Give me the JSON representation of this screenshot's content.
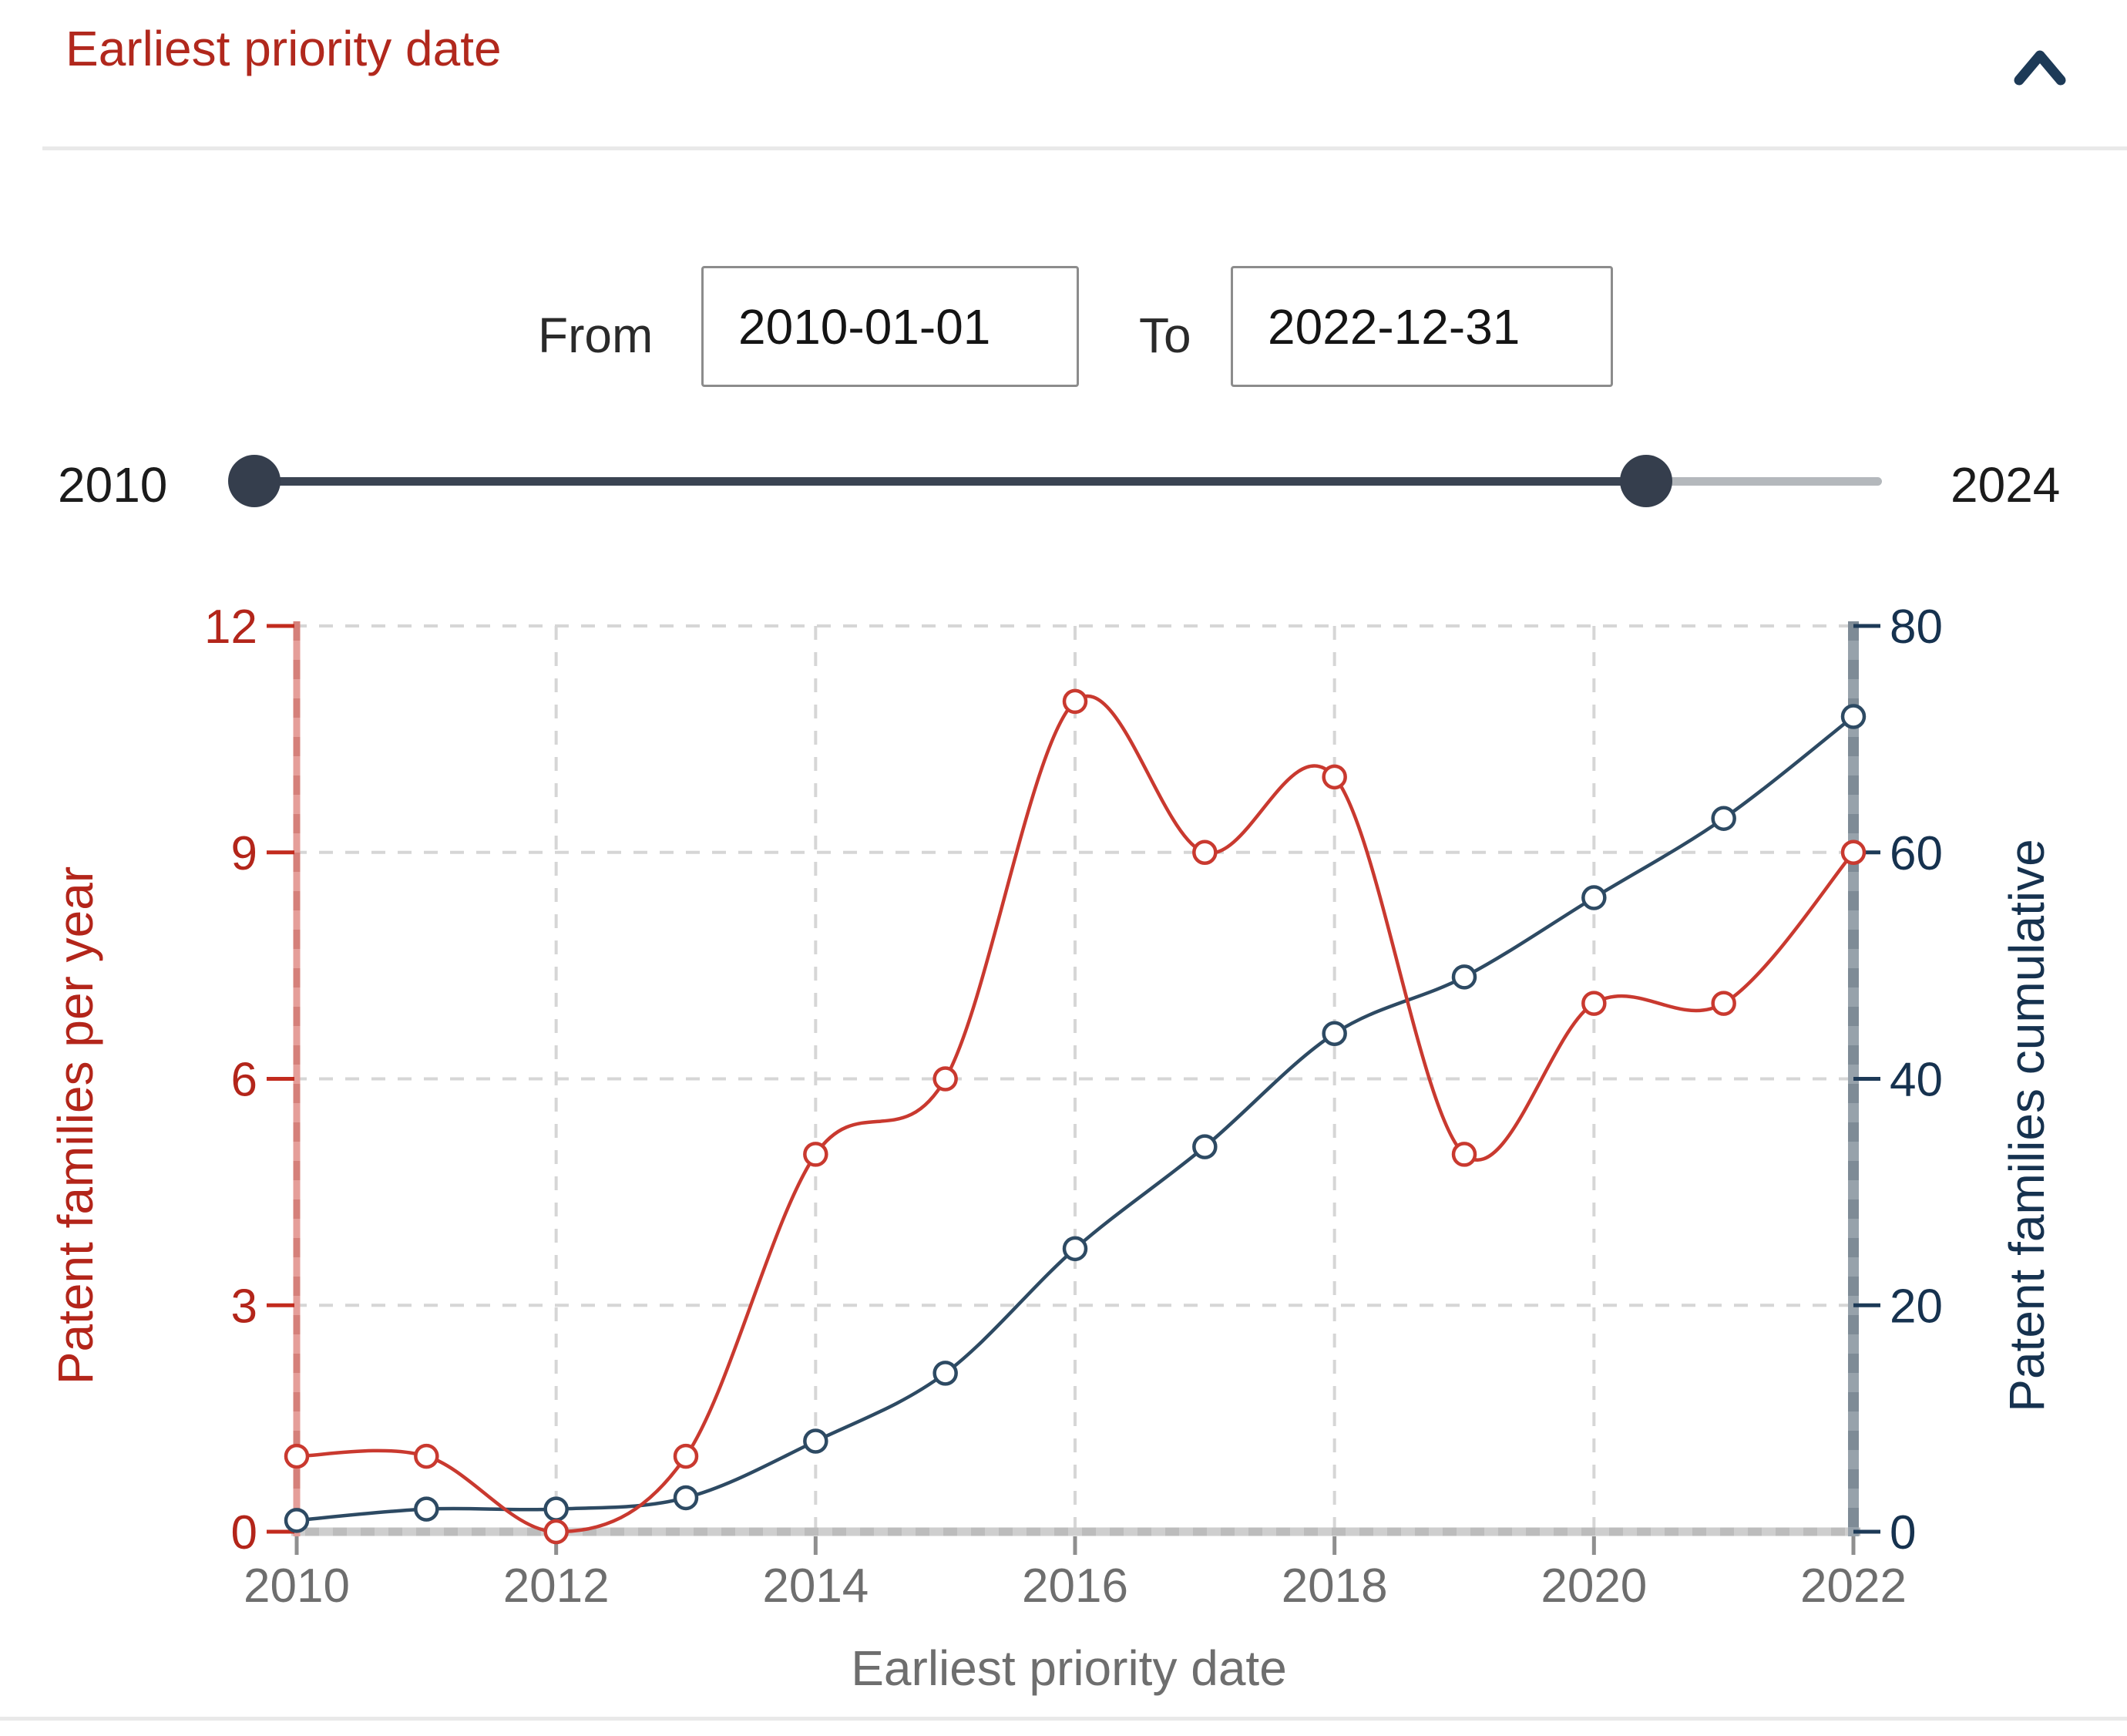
{
  "header": {
    "title": "Earliest priority date",
    "collapse_icon": "chevron-up"
  },
  "date_filter": {
    "from_label": "From",
    "from_value": "2010-01-01",
    "to_label": "To",
    "to_value": "2022-12-31"
  },
  "range_slider": {
    "min_label": "2010",
    "max_label": "2024",
    "min": 2010,
    "max": 2024,
    "selected_start": 2010,
    "selected_end": 2022
  },
  "chart_data": {
    "type": "line",
    "x": [
      2010,
      2011,
      2012,
      2013,
      2014,
      2015,
      2016,
      2017,
      2018,
      2019,
      2020,
      2021,
      2022
    ],
    "series": [
      {
        "name": "Patent families per year",
        "axis": "left",
        "color": "#c9392f",
        "marker": "open-circle",
        "values": [
          1,
          1,
          0,
          1,
          5,
          6,
          11,
          9,
          10,
          5,
          7,
          7,
          9
        ]
      },
      {
        "name": "Patent families cumulative",
        "axis": "right",
        "color": "#2d4a63",
        "marker": "open-circle",
        "values": [
          1,
          2,
          2,
          3,
          8,
          14,
          25,
          34,
          44,
          49,
          56,
          63,
          72
        ]
      }
    ],
    "left_axis": {
      "label": "Patent families per year",
      "color": "#b3251a",
      "ticks": [
        0,
        3,
        6,
        9,
        12
      ],
      "range": [
        0,
        12
      ]
    },
    "right_axis": {
      "label": "Patent families cumulative",
      "color": "#16324f",
      "ticks": [
        0,
        20,
        40,
        60,
        80
      ],
      "range": [
        0,
        80
      ]
    },
    "x_axis": {
      "label": "Earliest priority date",
      "color": "#6e6e6e",
      "ticks": [
        2010,
        2012,
        2014,
        2016,
        2018,
        2020,
        2022
      ],
      "range": [
        2010,
        2022
      ]
    },
    "grid": true,
    "smooth": true,
    "legend": "none"
  },
  "colors": {
    "header_red": "#b1281d",
    "chevron_navy": "#1d3a57",
    "divider": "#e9e9e9",
    "slider_dark": "#3a4352",
    "slider_light": "#b4b8bc",
    "grid_line": "#d6d6d6",
    "baseline": "#bcbcbc",
    "baseline_dash": "#cecece",
    "left_spine": "#e59e99",
    "left_spine_dash": "#d5807a",
    "right_spine": "#97a2ab",
    "right_spine_dash": "#7e8b96",
    "left_tick": "#c22b1e",
    "right_tick": "#1d3a57",
    "x_tick": "#8f8f8f"
  }
}
